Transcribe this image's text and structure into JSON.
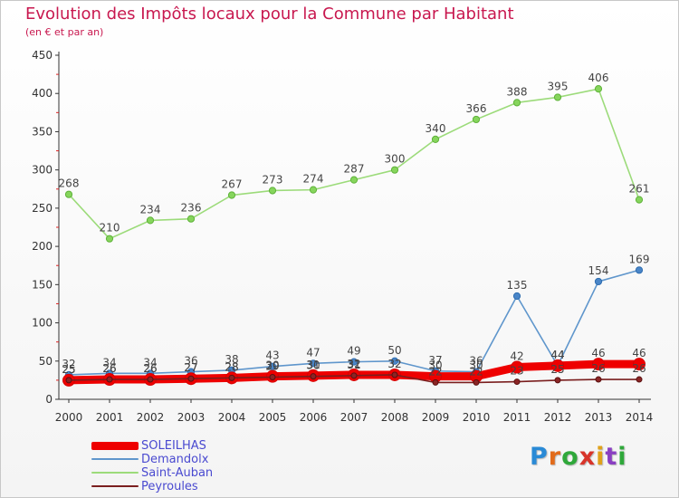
{
  "title": "Evolution des Impôts locaux pour la Commune par Habitant",
  "subtitle": "(en € et par an)",
  "logo_text": "Proxiti",
  "chart_data": {
    "type": "line",
    "x": [
      "2000",
      "2001",
      "2002",
      "2003",
      "2004",
      "2005",
      "2006",
      "2007",
      "2008",
      "2009",
      "2010",
      "2011",
      "2012",
      "2013",
      "2014"
    ],
    "ylim": [
      0,
      450
    ],
    "yticks": [
      0,
      50,
      100,
      150,
      200,
      250,
      300,
      350,
      400,
      450
    ],
    "grid": false,
    "legend_position": "bottom-left",
    "series": [
      {
        "name": "SOLEILHAS",
        "color": "#ee0000",
        "values": [
          25,
          26,
          26,
          27,
          28,
          30,
          31,
          32,
          32,
          30,
          30,
          42,
          44,
          46,
          46
        ],
        "labels": [
          "25",
          "26",
          "26",
          "27",
          "28",
          "30",
          "31",
          "32",
          "32",
          "30",
          "30",
          "42",
          "44",
          "46",
          "46"
        ]
      },
      {
        "name": "Demandolx",
        "color": "#5f96cc",
        "values": [
          32,
          34,
          34,
          36,
          38,
          43,
          47,
          49,
          50,
          37,
          36,
          135,
          44,
          154,
          169
        ],
        "labels": [
          "32",
          "34",
          "34",
          "36",
          "38",
          "43",
          "47",
          "49",
          "50",
          "37",
          "36",
          "135",
          "44",
          "154",
          "169"
        ]
      },
      {
        "name": "Saint-Auban",
        "color": "#9cdb7a",
        "values": [
          268,
          210,
          234,
          236,
          267,
          273,
          274,
          287,
          300,
          340,
          366,
          388,
          395,
          406,
          261
        ],
        "labels": [
          "268",
          "210",
          "234",
          "236",
          "267",
          "273",
          "274",
          "287",
          "300",
          "340",
          "366",
          "388",
          "395",
          "406",
          "261"
        ]
      },
      {
        "name": "Peyroules",
        "color": "#7a1e1e",
        "values": [
          25,
          26,
          26,
          27,
          28,
          29,
          30,
          31,
          32,
          22,
          22,
          23,
          25,
          26,
          26
        ],
        "labels": [
          "25",
          "26",
          "26",
          "27",
          "28",
          "29",
          "30",
          "31",
          "32",
          "22",
          "22",
          "23",
          "25",
          "26",
          "26"
        ]
      }
    ]
  }
}
